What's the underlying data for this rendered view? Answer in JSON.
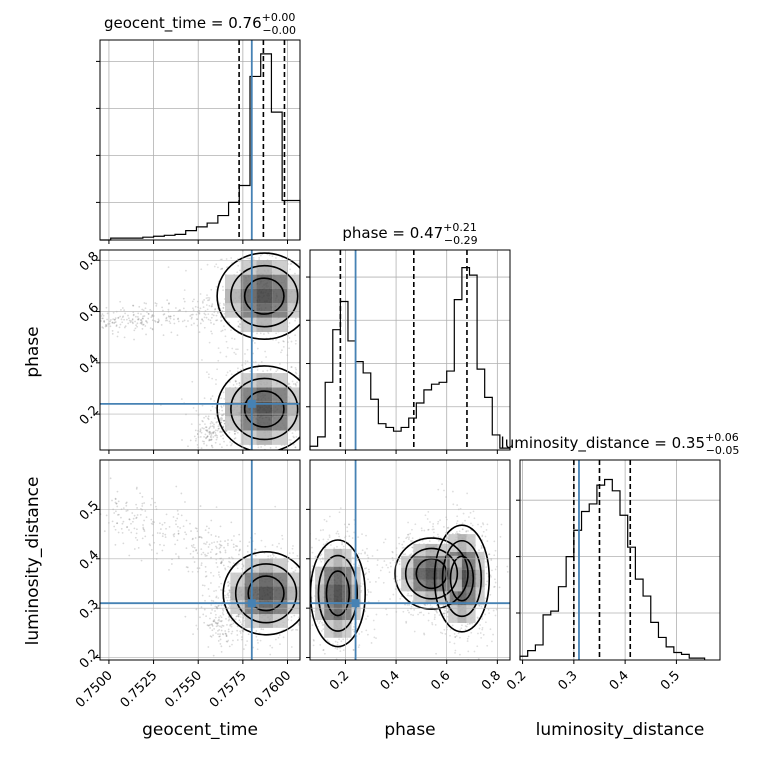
{
  "chart_data": [
    {
      "type": "step-histogram",
      "panel": "diag-geocent-time",
      "parameter": "geocent_time",
      "title": {
        "prefix": "geocent_time = ",
        "value": "0.76",
        "plus": "+0.00",
        "minus": "−0.00"
      },
      "x_range": [
        0.7495,
        0.7607
      ],
      "bins": [
        [
          0.7495,
          0.7501,
          0
        ],
        [
          0.7501,
          0.7507,
          0.01
        ],
        [
          0.7507,
          0.7513,
          0.01
        ],
        [
          0.7513,
          0.7519,
          0.01
        ],
        [
          0.7519,
          0.7525,
          0.015
        ],
        [
          0.7525,
          0.7531,
          0.02
        ],
        [
          0.7531,
          0.7537,
          0.025
        ],
        [
          0.7537,
          0.7543,
          0.03
        ],
        [
          0.7543,
          0.7549,
          0.05
        ],
        [
          0.7549,
          0.7555,
          0.07
        ],
        [
          0.7555,
          0.7561,
          0.09
        ],
        [
          0.7561,
          0.7567,
          0.13
        ],
        [
          0.7567,
          0.7573,
          0.2
        ],
        [
          0.7573,
          0.7579,
          0.29
        ],
        [
          0.7579,
          0.7585,
          0.87
        ],
        [
          0.7585,
          0.7591,
          0.99
        ],
        [
          0.7591,
          0.7597,
          0.68
        ],
        [
          0.7597,
          0.7603,
          0.21
        ],
        [
          0.7603,
          0.7607,
          0.21
        ]
      ],
      "quantiles": [
        0.75729,
        0.75865,
        0.75983
      ],
      "truth": 0.758,
      "y_gridlines": [
        0.2,
        0.45,
        0.7,
        0.95
      ]
    },
    {
      "type": "step-histogram",
      "panel": "diag-phase",
      "parameter": "phase",
      "title": {
        "prefix": "phase = ",
        "value": "0.47",
        "plus": "+0.21",
        "minus": "−0.29"
      },
      "x_range": [
        0.06,
        0.85
      ],
      "bins": [
        [
          0.06,
          0.09,
          0.02
        ],
        [
          0.09,
          0.12,
          0.07
        ],
        [
          0.12,
          0.15,
          0.36
        ],
        [
          0.15,
          0.18,
          0.64
        ],
        [
          0.18,
          0.21,
          0.79
        ],
        [
          0.21,
          0.24,
          0.58
        ],
        [
          0.24,
          0.27,
          0.47
        ],
        [
          0.27,
          0.3,
          0.41
        ],
        [
          0.3,
          0.33,
          0.27
        ],
        [
          0.33,
          0.36,
          0.14
        ],
        [
          0.36,
          0.39,
          0.12
        ],
        [
          0.39,
          0.42,
          0.1
        ],
        [
          0.42,
          0.45,
          0.12
        ],
        [
          0.45,
          0.48,
          0.17
        ],
        [
          0.48,
          0.51,
          0.25
        ],
        [
          0.51,
          0.54,
          0.32
        ],
        [
          0.54,
          0.57,
          0.35
        ],
        [
          0.57,
          0.6,
          0.36
        ],
        [
          0.6,
          0.63,
          0.42
        ],
        [
          0.63,
          0.66,
          0.8
        ],
        [
          0.66,
          0.69,
          0.97
        ],
        [
          0.69,
          0.72,
          0.93
        ],
        [
          0.72,
          0.75,
          0.43
        ],
        [
          0.75,
          0.78,
          0.28
        ],
        [
          0.78,
          0.81,
          0.08
        ],
        [
          0.81,
          0.85,
          0.01
        ]
      ],
      "quantiles": [
        0.18,
        0.47,
        0.68
      ],
      "truth": 0.24,
      "y_gridlines": [
        0.23,
        0.46,
        0.69,
        0.92
      ]
    },
    {
      "type": "step-histogram",
      "panel": "diag-luminosity-distance",
      "parameter": "luminosity_distance",
      "title": {
        "prefix": "luminosity_distance = ",
        "value": "0.35",
        "plus": "+0.06",
        "minus": "−0.05"
      },
      "x_range": [
        0.195,
        0.585
      ],
      "bins": [
        [
          0.195,
          0.21,
          0.02
        ],
        [
          0.21,
          0.225,
          0.05
        ],
        [
          0.225,
          0.24,
          0.08
        ],
        [
          0.24,
          0.255,
          0.24
        ],
        [
          0.255,
          0.27,
          0.26
        ],
        [
          0.27,
          0.285,
          0.39
        ],
        [
          0.285,
          0.3,
          0.55
        ],
        [
          0.3,
          0.315,
          0.69
        ],
        [
          0.315,
          0.33,
          0.79
        ],
        [
          0.33,
          0.345,
          0.83
        ],
        [
          0.345,
          0.36,
          0.93
        ],
        [
          0.36,
          0.375,
          0.96
        ],
        [
          0.375,
          0.39,
          0.9
        ],
        [
          0.39,
          0.405,
          0.77
        ],
        [
          0.405,
          0.42,
          0.6
        ],
        [
          0.42,
          0.435,
          0.43
        ],
        [
          0.435,
          0.45,
          0.34
        ],
        [
          0.45,
          0.465,
          0.2
        ],
        [
          0.465,
          0.48,
          0.12
        ],
        [
          0.48,
          0.495,
          0.07
        ],
        [
          0.495,
          0.51,
          0.04
        ],
        [
          0.51,
          0.525,
          0.03
        ],
        [
          0.525,
          0.54,
          0.01
        ],
        [
          0.54,
          0.555,
          0.01
        ]
      ],
      "quantiles": [
        0.3,
        0.35,
        0.41
      ],
      "truth": 0.31,
      "y_gridlines": [
        0.25,
        0.55,
        0.85
      ]
    },
    {
      "type": "scatter-density",
      "panel": "2d-geocent-time-phase",
      "x_parameter": "geocent_time",
      "y_parameter": "phase",
      "x_range": [
        0.7495,
        0.7607
      ],
      "y_range": [
        0.06,
        0.84
      ],
      "modes": [
        {
          "x": 0.7587,
          "y": 0.66,
          "sx": 0.0011,
          "sy": 0.07
        },
        {
          "x": 0.7587,
          "y": 0.22,
          "sx": 0.0011,
          "sy": 0.07
        }
      ],
      "tails": [
        {
          "x0": 0.7495,
          "y0": 0.55,
          "x1": 0.7565,
          "y1": 0.6
        },
        {
          "x0": 0.755,
          "y0": 0.1,
          "x1": 0.7585,
          "y1": 0.25
        }
      ],
      "contour_levels": [
        0.25,
        0.5,
        0.75
      ],
      "truth": {
        "x": 0.758,
        "y": 0.24
      }
    },
    {
      "type": "scatter-density",
      "panel": "2d-geocent-time-luminosity-distance",
      "x_parameter": "geocent_time",
      "y_parameter": "luminosity_distance",
      "x_range": [
        0.7495,
        0.7607
      ],
      "y_range": [
        0.195,
        0.6
      ],
      "modes": [
        {
          "x": 0.7588,
          "y": 0.33,
          "sx": 0.001,
          "sy": 0.035
        }
      ],
      "tails": [
        {
          "x0": 0.75,
          "y0": 0.5,
          "x1": 0.7575,
          "y1": 0.4
        },
        {
          "x0": 0.7555,
          "y0": 0.27,
          "x1": 0.7585,
          "y1": 0.31
        }
      ],
      "contour_levels": [
        0.2,
        0.45,
        0.7
      ],
      "truth": {
        "x": 0.758,
        "y": 0.31
      }
    },
    {
      "type": "scatter-density",
      "panel": "2d-phase-luminosity-distance",
      "x_parameter": "phase",
      "y_parameter": "luminosity_distance",
      "x_range": [
        0.06,
        0.85
      ],
      "y_range": [
        0.195,
        0.6
      ],
      "modes": [
        {
          "x": 0.17,
          "y": 0.33,
          "sx": 0.045,
          "sy": 0.045
        },
        {
          "x": 0.66,
          "y": 0.36,
          "sx": 0.045,
          "sy": 0.045
        },
        {
          "x": 0.54,
          "y": 0.37,
          "sx": 0.06,
          "sy": 0.03
        }
      ],
      "tails": [],
      "contour_levels": [
        0.15,
        0.4,
        0.7
      ],
      "truth": {
        "x": 0.24,
        "y": 0.31
      }
    }
  ],
  "axes": {
    "geocent_time": {
      "label": "geocent_time",
      "ticks": [
        {
          "value": 0.75,
          "label": "0.7500"
        },
        {
          "value": 0.7525,
          "label": "0.7525"
        },
        {
          "value": 0.755,
          "label": "0.7550"
        },
        {
          "value": 0.7575,
          "label": "0.7575"
        },
        {
          "value": 0.76,
          "label": "0.7600"
        }
      ]
    },
    "phase": {
      "label": "phase",
      "x_ticks": [
        {
          "value": 0.2,
          "label": "0.2"
        },
        {
          "value": 0.4,
          "label": "0.4"
        },
        {
          "value": 0.6,
          "label": "0.6"
        },
        {
          "value": 0.8,
          "label": "0.8"
        }
      ],
      "y_ticks": [
        {
          "value": 0.2,
          "label": "0.2"
        },
        {
          "value": 0.4,
          "label": "0.4"
        },
        {
          "value": 0.6,
          "label": "0.6"
        },
        {
          "value": 0.8,
          "label": "0.8"
        }
      ]
    },
    "luminosity_distance": {
      "label": "luminosity_distance",
      "x_ticks": [
        {
          "value": 0.2,
          "label": "0.2"
        },
        {
          "value": 0.3,
          "label": "0.3"
        },
        {
          "value": 0.4,
          "label": "0.4"
        },
        {
          "value": 0.5,
          "label": "0.5"
        }
      ],
      "y_ticks": [
        {
          "value": 0.2,
          "label": "0.2"
        },
        {
          "value": 0.3,
          "label": "0.3"
        },
        {
          "value": 0.4,
          "label": "0.4"
        },
        {
          "value": 0.5,
          "label": "0.5"
        }
      ]
    }
  },
  "style": {
    "truth_color": "#4682b4",
    "line_color": "#000000",
    "grid_color": "#b0b0b0",
    "point_color": "#000000"
  }
}
